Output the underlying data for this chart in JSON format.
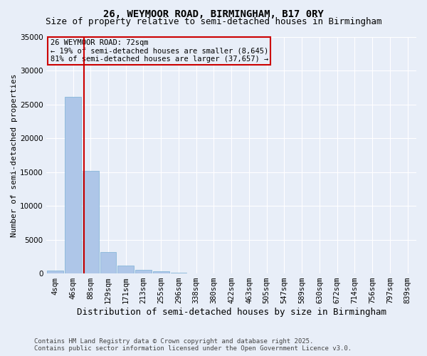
{
  "title": "26, WEYMOOR ROAD, BIRMINGHAM, B17 0RY",
  "subtitle": "Size of property relative to semi-detached houses in Birmingham",
  "xlabel": "Distribution of semi-detached houses by size in Birmingham",
  "ylabel": "Number of semi-detached properties",
  "annotation_line1": "26 WEYMOOR ROAD: 72sqm",
  "annotation_line2": "← 19% of semi-detached houses are smaller (8,645)",
  "annotation_line3": "81% of semi-detached houses are larger (37,657) →",
  "footer_line1": "Contains HM Land Registry data © Crown copyright and database right 2025.",
  "footer_line2": "Contains public sector information licensed under the Open Government Licence v3.0.",
  "bar_labels": [
    "4sqm",
    "46sqm",
    "88sqm",
    "129sqm",
    "171sqm",
    "213sqm",
    "255sqm",
    "296sqm",
    "338sqm",
    "380sqm",
    "422sqm",
    "463sqm",
    "505sqm",
    "547sqm",
    "589sqm",
    "630sqm",
    "672sqm",
    "714sqm",
    "756sqm",
    "797sqm",
    "839sqm"
  ],
  "bar_values": [
    400,
    26100,
    15200,
    3200,
    1200,
    500,
    300,
    100,
    0,
    0,
    0,
    0,
    0,
    0,
    0,
    0,
    0,
    0,
    0,
    0,
    0
  ],
  "bar_color": "#aec6e8",
  "bar_edge_color": "#7ab0d4",
  "vline_color": "#cc0000",
  "vline_x_index": 1.62,
  "ylim": [
    0,
    35000
  ],
  "yticks": [
    0,
    5000,
    10000,
    15000,
    20000,
    25000,
    30000,
    35000
  ],
  "bg_color": "#e8eef8",
  "grid_color": "#ffffff",
  "annotation_box_color": "#cc0000",
  "title_fontsize": 10,
  "subtitle_fontsize": 9,
  "ylabel_fontsize": 8,
  "xlabel_fontsize": 9,
  "tick_fontsize": 7.5,
  "footer_fontsize": 6.5
}
